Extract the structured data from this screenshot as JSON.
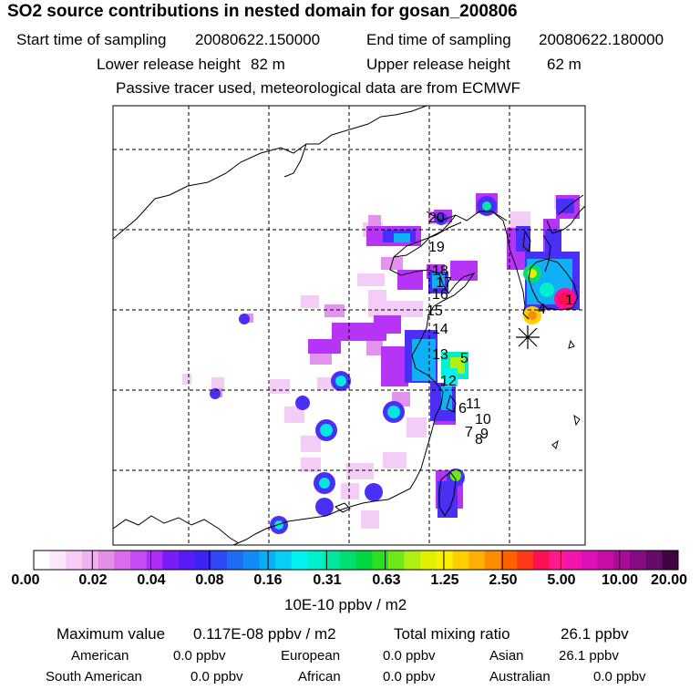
{
  "title": "SO2 source contributions in nested domain for gosan_200806",
  "sampling": {
    "start_label": "Start time of sampling",
    "start_value": "20080622.150000",
    "end_label": "End time of sampling",
    "end_value": "20080622.180000"
  },
  "release": {
    "lower_label": "Lower release height",
    "lower_value": "82 m",
    "upper_label": "Upper release height",
    "upper_value": "62 m"
  },
  "model_note": "Passive tracer used, meteorological data are from ECMWF",
  "map": {
    "receptor_marker": "asterisk",
    "source_labels": [
      "1",
      "4",
      "5",
      "6",
      "7",
      "8",
      "9",
      "10",
      "11",
      "12",
      "13",
      "14",
      "15",
      "16",
      "17",
      "18",
      "19",
      "20"
    ]
  },
  "colorbar": {
    "ticks": [
      "0.00",
      "0.02",
      "0.04",
      "0.08",
      "0.16",
      "0.31",
      "0.63",
      "1.25",
      "2.50",
      "5.00",
      "10.00",
      "20.00"
    ],
    "unit": "10E-10 ppbv / m2",
    "colors": [
      "#ffffff",
      "#fbe6fb",
      "#f6ccf6",
      "#efb4ef",
      "#e58ee8",
      "#d86bf0",
      "#c64bf7",
      "#b02cfa",
      "#7a1cf5",
      "#5a1af5",
      "#3c24f7",
      "#2e48f7",
      "#1f6cf7",
      "#118cf7",
      "#08aef7",
      "#05cff7",
      "#00f3f3",
      "#00f0cc",
      "#00e8a0",
      "#00de70",
      "#00d640",
      "#28e020",
      "#70e818",
      "#b0f010",
      "#e0f000",
      "#fff000",
      "#ffd000",
      "#ffb000",
      "#ff8c00",
      "#ff6000",
      "#ff3818",
      "#ff1050",
      "#ff1890",
      "#f414b0",
      "#e010b8",
      "#c80ca8",
      "#a80c98",
      "#880c88",
      "#680a68",
      "#400440"
    ]
  },
  "summary": {
    "max_label": "Maximum value",
    "max_value": "0.117E-08 ppbv / m2",
    "total_label": "Total mixing ratio",
    "total_value": "26.1 ppbv"
  },
  "regions": [
    {
      "name": "American",
      "value": "0.0 ppbv"
    },
    {
      "name": "European",
      "value": "0.0 ppbv"
    },
    {
      "name": "Asian",
      "value": "26.1 ppbv"
    },
    {
      "name": "South American",
      "value": "0.0 ppbv"
    },
    {
      "name": "African",
      "value": "0.0 ppbv"
    },
    {
      "name": "Australian",
      "value": "0.0 ppbv"
    }
  ]
}
